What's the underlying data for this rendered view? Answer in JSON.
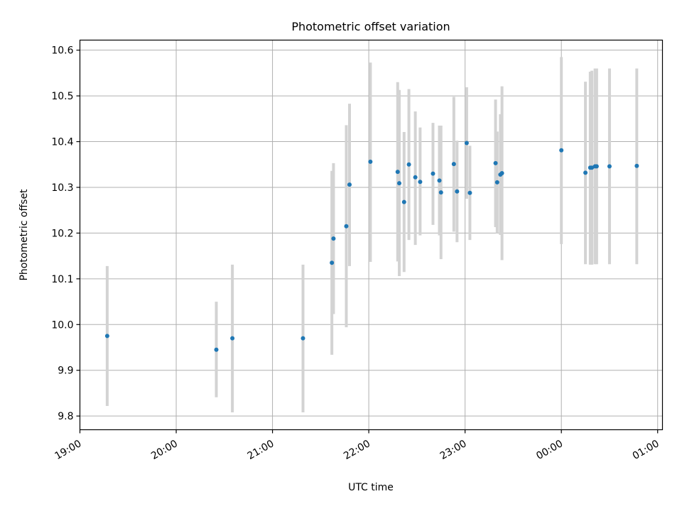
{
  "chart_data": {
    "type": "scatter",
    "title": "Photometric offset variation",
    "xlabel": "UTC time",
    "ylabel": "Photometric offset",
    "xlim": [
      "19:00",
      "01:03"
    ],
    "ylim": [
      9.77,
      10.622
    ],
    "x_ticks": [
      "19:00",
      "20:00",
      "21:00",
      "22:00",
      "23:00",
      "00:00",
      "01:00"
    ],
    "y_ticks": [
      9.8,
      9.9,
      10.0,
      10.1,
      10.2,
      10.3,
      10.4,
      10.5,
      10.6
    ],
    "grid": true,
    "colors": {
      "point": "#1f77b4",
      "errorbar": "#d3d3d3",
      "grid": "#b0b0b0"
    },
    "points": [
      {
        "time": "19:17",
        "y": 9.975,
        "low": 9.822,
        "high": 10.128
      },
      {
        "time": "20:25",
        "y": 9.945,
        "low": 9.841,
        "high": 10.05
      },
      {
        "time": "20:35",
        "y": 9.97,
        "low": 9.808,
        "high": 10.131
      },
      {
        "time": "21:19",
        "y": 9.97,
        "low": 9.808,
        "high": 10.131
      },
      {
        "time": "21:37",
        "y": 10.135,
        "low": 9.934,
        "high": 10.336
      },
      {
        "time": "21:38",
        "y": 10.188,
        "low": 10.023,
        "high": 10.353
      },
      {
        "time": "21:46",
        "y": 10.215,
        "low": 9.994,
        "high": 10.436
      },
      {
        "time": "21:48",
        "y": 10.306,
        "low": 10.128,
        "high": 10.483
      },
      {
        "time": "22:01",
        "y": 10.356,
        "low": 10.137,
        "high": 10.573
      },
      {
        "time": "22:18",
        "y": 10.334,
        "low": 10.138,
        "high": 10.53
      },
      {
        "time": "22:19",
        "y": 10.309,
        "low": 10.106,
        "high": 10.513
      },
      {
        "time": "22:22",
        "y": 10.268,
        "low": 10.115,
        "high": 10.421
      },
      {
        "time": "22:25",
        "y": 10.35,
        "low": 10.185,
        "high": 10.515
      },
      {
        "time": "22:29",
        "y": 10.322,
        "low": 10.174,
        "high": 10.466
      },
      {
        "time": "22:32",
        "y": 10.312,
        "low": 10.195,
        "high": 10.431
      },
      {
        "time": "22:40",
        "y": 10.33,
        "low": 10.218,
        "high": 10.441
      },
      {
        "time": "22:44",
        "y": 10.315,
        "low": 10.195,
        "high": 10.435
      },
      {
        "time": "22:45",
        "y": 10.289,
        "low": 10.143,
        "high": 10.435
      },
      {
        "time": "22:53",
        "y": 10.351,
        "low": 10.203,
        "high": 10.498
      },
      {
        "time": "22:55",
        "y": 10.291,
        "low": 10.18,
        "high": 10.402
      },
      {
        "time": "23:01",
        "y": 10.397,
        "low": 10.275,
        "high": 10.519
      },
      {
        "time": "23:03",
        "y": 10.288,
        "low": 10.185,
        "high": 10.391
      },
      {
        "time": "23:19",
        "y": 10.353,
        "low": 10.213,
        "high": 10.492
      },
      {
        "time": "23:20",
        "y": 10.311,
        "low": 10.2,
        "high": 10.422
      },
      {
        "time": "23:22",
        "y": 10.328,
        "low": 10.196,
        "high": 10.46
      },
      {
        "time": "23:23",
        "y": 10.331,
        "low": 10.141,
        "high": 10.521
      },
      {
        "time": "00:00",
        "y": 10.381,
        "low": 10.176,
        "high": 10.585
      },
      {
        "time": "00:15",
        "y": 10.332,
        "low": 10.132,
        "high": 10.531
      },
      {
        "time": "00:18",
        "y": 10.343,
        "low": 10.131,
        "high": 10.553
      },
      {
        "time": "00:19",
        "y": 10.343,
        "low": 10.131,
        "high": 10.555
      },
      {
        "time": "00:21",
        "y": 10.346,
        "low": 10.132,
        "high": 10.56
      },
      {
        "time": "00:22",
        "y": 10.346,
        "low": 10.132,
        "high": 10.56
      },
      {
        "time": "00:30",
        "y": 10.346,
        "low": 10.132,
        "high": 10.56
      },
      {
        "time": "00:47",
        "y": 10.347,
        "low": 10.132,
        "high": 10.56
      }
    ]
  }
}
